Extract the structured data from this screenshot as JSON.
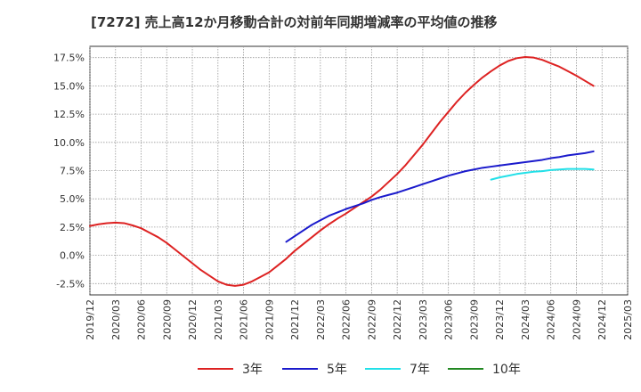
{
  "title": "[7272]  売上高12か月移動合計の対前年同期増減率の平均値の推移",
  "chart_data": {
    "type": "line",
    "title": "[7272]  売上高12か月移動合計の対前年同期増減率の平均値の推移",
    "xlabel": "",
    "ylabel": "",
    "ylim": [
      -3.5,
      18.5
    ],
    "y_ticks": [
      -2.5,
      0.0,
      2.5,
      5.0,
      7.5,
      10.0,
      12.5,
      15.0,
      17.5
    ],
    "y_tick_labels": [
      "-2.5%",
      "0.0%",
      "2.5%",
      "5.0%",
      "7.5%",
      "10.0%",
      "12.5%",
      "15.0%",
      "17.5%"
    ],
    "x_tick_labels": [
      "2019/12",
      "2020/03",
      "2020/06",
      "2020/09",
      "2020/12",
      "2021/03",
      "2021/06",
      "2021/09",
      "2021/12",
      "2022/03",
      "2022/06",
      "2022/09",
      "2022/12",
      "2023/03",
      "2023/06",
      "2023/09",
      "2023/12",
      "2024/03",
      "2024/06",
      "2024/09",
      "2024/12",
      "2025/03"
    ],
    "grid": true,
    "legend_position": "bottom",
    "series": [
      {
        "name": "3年",
        "color": "#dd2222",
        "points": [
          [
            "2019/12",
            2.6
          ],
          [
            "2020/01",
            2.75
          ],
          [
            "2020/02",
            2.85
          ],
          [
            "2020/03",
            2.9
          ],
          [
            "2020/04",
            2.85
          ],
          [
            "2020/05",
            2.65
          ],
          [
            "2020/06",
            2.4
          ],
          [
            "2020/07",
            2.0
          ],
          [
            "2020/08",
            1.6
          ],
          [
            "2020/09",
            1.1
          ],
          [
            "2020/10",
            0.5
          ],
          [
            "2020/11",
            -0.1
          ],
          [
            "2020/12",
            -0.7
          ],
          [
            "2021/01",
            -1.3
          ],
          [
            "2021/02",
            -1.8
          ],
          [
            "2021/03",
            -2.3
          ],
          [
            "2021/04",
            -2.6
          ],
          [
            "2021/05",
            -2.7
          ],
          [
            "2021/06",
            -2.6
          ],
          [
            "2021/07",
            -2.3
          ],
          [
            "2021/08",
            -1.9
          ],
          [
            "2021/09",
            -1.5
          ],
          [
            "2021/10",
            -0.9
          ],
          [
            "2021/11",
            -0.3
          ],
          [
            "2021/12",
            0.4
          ],
          [
            "2022/01",
            1.0
          ],
          [
            "2022/02",
            1.6
          ],
          [
            "2022/03",
            2.2
          ],
          [
            "2022/04",
            2.75
          ],
          [
            "2022/05",
            3.25
          ],
          [
            "2022/06",
            3.7
          ],
          [
            "2022/07",
            4.2
          ],
          [
            "2022/08",
            4.7
          ],
          [
            "2022/09",
            5.2
          ],
          [
            "2022/10",
            5.8
          ],
          [
            "2022/11",
            6.5
          ],
          [
            "2022/12",
            7.2
          ],
          [
            "2023/01",
            8.0
          ],
          [
            "2023/02",
            8.9
          ],
          [
            "2023/03",
            9.8
          ],
          [
            "2023/04",
            10.8
          ],
          [
            "2023/05",
            11.8
          ],
          [
            "2023/06",
            12.7
          ],
          [
            "2023/07",
            13.6
          ],
          [
            "2023/08",
            14.4
          ],
          [
            "2023/09",
            15.1
          ],
          [
            "2023/10",
            15.75
          ],
          [
            "2023/11",
            16.3
          ],
          [
            "2023/12",
            16.8
          ],
          [
            "2024/01",
            17.2
          ],
          [
            "2024/02",
            17.45
          ],
          [
            "2024/03",
            17.55
          ],
          [
            "2024/04",
            17.5
          ],
          [
            "2024/05",
            17.3
          ],
          [
            "2024/06",
            17.0
          ],
          [
            "2024/07",
            16.7
          ],
          [
            "2024/08",
            16.3
          ],
          [
            "2024/09",
            15.9
          ],
          [
            "2024/10",
            15.45
          ],
          [
            "2024/11",
            15.0
          ]
        ]
      },
      {
        "name": "5年",
        "color": "#1a1acc",
        "points": [
          [
            "2021/11",
            1.2
          ],
          [
            "2021/12",
            1.7
          ],
          [
            "2022/01",
            2.2
          ],
          [
            "2022/02",
            2.7
          ],
          [
            "2022/03",
            3.1
          ],
          [
            "2022/04",
            3.5
          ],
          [
            "2022/05",
            3.8
          ],
          [
            "2022/06",
            4.1
          ],
          [
            "2022/07",
            4.35
          ],
          [
            "2022/08",
            4.6
          ],
          [
            "2022/09",
            4.9
          ],
          [
            "2022/10",
            5.15
          ],
          [
            "2022/11",
            5.35
          ],
          [
            "2022/12",
            5.55
          ],
          [
            "2023/01",
            5.8
          ],
          [
            "2023/02",
            6.05
          ],
          [
            "2023/03",
            6.3
          ],
          [
            "2023/04",
            6.55
          ],
          [
            "2023/05",
            6.8
          ],
          [
            "2023/06",
            7.05
          ],
          [
            "2023/07",
            7.25
          ],
          [
            "2023/08",
            7.45
          ],
          [
            "2023/09",
            7.6
          ],
          [
            "2023/10",
            7.75
          ],
          [
            "2023/11",
            7.85
          ],
          [
            "2023/12",
            7.95
          ],
          [
            "2024/01",
            8.05
          ],
          [
            "2024/02",
            8.15
          ],
          [
            "2024/03",
            8.25
          ],
          [
            "2024/04",
            8.35
          ],
          [
            "2024/05",
            8.45
          ],
          [
            "2024/06",
            8.6
          ],
          [
            "2024/07",
            8.7
          ],
          [
            "2024/08",
            8.85
          ],
          [
            "2024/09",
            8.95
          ],
          [
            "2024/10",
            9.05
          ],
          [
            "2024/11",
            9.2
          ]
        ]
      },
      {
        "name": "7年",
        "color": "#22e0e8",
        "points": [
          [
            "2023/11",
            6.7
          ],
          [
            "2023/12",
            6.9
          ],
          [
            "2024/01",
            7.05
          ],
          [
            "2024/02",
            7.2
          ],
          [
            "2024/03",
            7.3
          ],
          [
            "2024/04",
            7.4
          ],
          [
            "2024/05",
            7.45
          ],
          [
            "2024/06",
            7.55
          ],
          [
            "2024/07",
            7.6
          ],
          [
            "2024/08",
            7.65
          ],
          [
            "2024/09",
            7.65
          ],
          [
            "2024/10",
            7.65
          ],
          [
            "2024/11",
            7.6
          ]
        ]
      },
      {
        "name": "10年",
        "color": "#228822",
        "points": []
      }
    ]
  }
}
